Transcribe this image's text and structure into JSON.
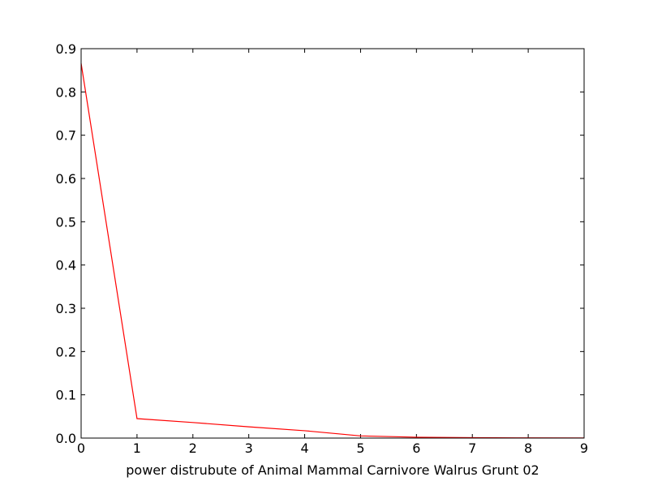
{
  "chart_data": {
    "type": "line",
    "title": "",
    "xlabel": "power distrubute of Animal Mammal Carnivore Walrus Grunt 02",
    "ylabel": "",
    "xlim": [
      0,
      9
    ],
    "ylim": [
      0,
      0.9
    ],
    "xticks": [
      "0",
      "1",
      "2",
      "3",
      "4",
      "5",
      "6",
      "7",
      "8",
      "9"
    ],
    "yticks": [
      "0.0",
      "0.1",
      "0.2",
      "0.3",
      "0.4",
      "0.5",
      "0.6",
      "0.7",
      "0.8",
      "0.9"
    ],
    "grid": false,
    "series": [
      {
        "color": "#ff0000",
        "x": [
          0,
          1,
          2,
          3,
          4,
          5,
          6,
          7,
          8,
          9
        ],
        "y": [
          0.866,
          0.045,
          0.036,
          0.026,
          0.017,
          0.005,
          0.002,
          0.001,
          0.0005,
          0.0002
        ]
      }
    ]
  }
}
